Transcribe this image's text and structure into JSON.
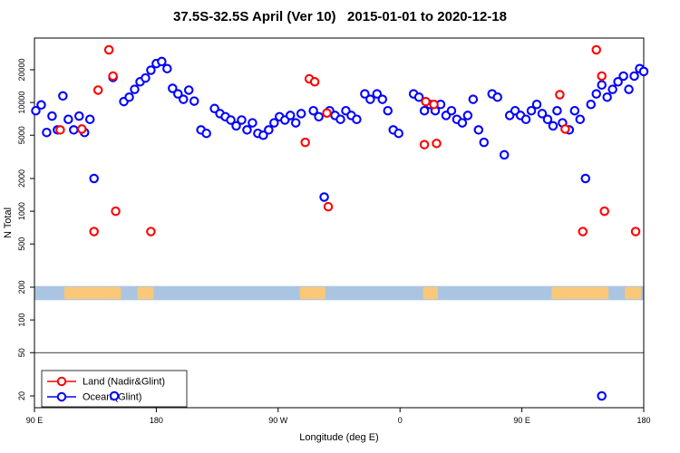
{
  "title": "37.5S-32.5S April (Ver 10)   2015-01-01 to 2020-12-18",
  "chart_data": {
    "type": "scatter",
    "title": "37.5S-32.5S April (Ver 10)   2015-01-01 to 2020-12-18",
    "xlabel": "Longitude (deg E)",
    "ylabel": "N Total",
    "x_axis": {
      "min": 90,
      "max": 540,
      "ticks": [
        {
          "v": 90,
          "label": "90 E"
        },
        {
          "v": 180,
          "label": "180"
        },
        {
          "v": 270,
          "label": "90 W"
        },
        {
          "v": 360,
          "label": "0"
        },
        {
          "v": 450,
          "label": "90 E"
        },
        {
          "v": 540,
          "label": "180"
        }
      ]
    },
    "y_axis": {
      "scale": "log",
      "min": 18,
      "max": 32000,
      "ticks": [
        20,
        50,
        100,
        200,
        500,
        1000,
        2000,
        5000,
        10000,
        20000
      ]
    },
    "gridline_y": 50,
    "map_strip": {
      "n_low": 152,
      "n_high": 205,
      "ocean_color": "#aac5e2",
      "land_color": "#f9c879",
      "land_patches": [
        [
          112,
          154
        ],
        [
          166,
          178
        ],
        [
          286,
          305
        ],
        [
          377,
          388
        ],
        [
          472,
          514
        ],
        [
          526,
          538
        ]
      ]
    },
    "legend": {
      "position": "bottom-left"
    },
    "series": [
      {
        "name": "Land (Nadir&Glint)",
        "color": "#ff0000",
        "points": [
          [
            109,
            5600
          ],
          [
            125,
            5700
          ],
          [
            134,
            650
          ],
          [
            137,
            13000
          ],
          [
            145,
            30500
          ],
          [
            148,
            17500
          ],
          [
            150,
            1000
          ],
          [
            176,
            650
          ],
          [
            290,
            4300
          ],
          [
            293,
            16500
          ],
          [
            297,
            15500
          ],
          [
            306,
            8000
          ],
          [
            307,
            1100
          ],
          [
            378,
            4100
          ],
          [
            379,
            10200
          ],
          [
            385,
            9600
          ],
          [
            387,
            4200
          ],
          [
            478,
            11800
          ],
          [
            482,
            5700
          ],
          [
            495,
            650
          ],
          [
            505,
            30500
          ],
          [
            509,
            17500
          ],
          [
            511,
            1000
          ],
          [
            534,
            650
          ]
        ]
      },
      {
        "name": "Ocean (Glint)",
        "color": "#0000ff",
        "points": [
          [
            91,
            8400
          ],
          [
            95,
            9500
          ],
          [
            99,
            5300
          ],
          [
            103,
            7500
          ],
          [
            107,
            5600
          ],
          [
            111,
            11500
          ],
          [
            115,
            7000
          ],
          [
            119,
            5600
          ],
          [
            123,
            7500
          ],
          [
            127,
            5300
          ],
          [
            131,
            7000
          ],
          [
            134,
            2000
          ],
          [
            148,
            17000
          ],
          [
            149,
            20
          ],
          [
            156,
            10200
          ],
          [
            160,
            11200
          ],
          [
            164,
            13200
          ],
          [
            168,
            15500
          ],
          [
            172,
            16800
          ],
          [
            176,
            19800
          ],
          [
            180,
            22800
          ],
          [
            184,
            23800
          ],
          [
            188,
            20500
          ],
          [
            192,
            13500
          ],
          [
            196,
            12000
          ],
          [
            200,
            10700
          ],
          [
            204,
            13000
          ],
          [
            208,
            10300
          ],
          [
            213,
            5600
          ],
          [
            217,
            5200
          ],
          [
            223,
            8800
          ],
          [
            227,
            7900
          ],
          [
            231,
            7400
          ],
          [
            235,
            6900
          ],
          [
            239,
            6100
          ],
          [
            243,
            6900
          ],
          [
            247,
            5600
          ],
          [
            251,
            6500
          ],
          [
            255,
            5200
          ],
          [
            259,
            5000
          ],
          [
            263,
            5600
          ],
          [
            267,
            6500
          ],
          [
            271,
            7400
          ],
          [
            275,
            6900
          ],
          [
            279,
            7600
          ],
          [
            283,
            6500
          ],
          [
            287,
            7900
          ],
          [
            296,
            8400
          ],
          [
            300,
            7400
          ],
          [
            304,
            1350
          ],
          [
            308,
            8400
          ],
          [
            312,
            7600
          ],
          [
            316,
            7000
          ],
          [
            320,
            8400
          ],
          [
            324,
            7600
          ],
          [
            328,
            7000
          ],
          [
            334,
            12000
          ],
          [
            338,
            10700
          ],
          [
            343,
            12000
          ],
          [
            347,
            10700
          ],
          [
            351,
            8400
          ],
          [
            355,
            5600
          ],
          [
            359,
            5200
          ],
          [
            370,
            12000
          ],
          [
            374,
            11200
          ],
          [
            378,
            8400
          ],
          [
            382,
            9600
          ],
          [
            386,
            8400
          ],
          [
            390,
            9600
          ],
          [
            394,
            7600
          ],
          [
            398,
            8400
          ],
          [
            402,
            7000
          ],
          [
            406,
            6500
          ],
          [
            410,
            7600
          ],
          [
            414,
            10700
          ],
          [
            418,
            5600
          ],
          [
            422,
            4300
          ],
          [
            428,
            12000
          ],
          [
            432,
            11200
          ],
          [
            437,
            3300
          ],
          [
            441,
            7600
          ],
          [
            445,
            8400
          ],
          [
            449,
            7600
          ],
          [
            453,
            7000
          ],
          [
            457,
            8400
          ],
          [
            461,
            9600
          ],
          [
            465,
            7900
          ],
          [
            469,
            7000
          ],
          [
            473,
            6100
          ],
          [
            476,
            8400
          ],
          [
            480,
            6500
          ],
          [
            485,
            5600
          ],
          [
            489,
            8400
          ],
          [
            493,
            7000
          ],
          [
            497,
            2000
          ],
          [
            501,
            9600
          ],
          [
            505,
            12000
          ],
          [
            509,
            20
          ],
          [
            509,
            14500
          ],
          [
            513,
            11200
          ],
          [
            517,
            13200
          ],
          [
            521,
            15500
          ],
          [
            525,
            17500
          ],
          [
            529,
            13200
          ],
          [
            533,
            17500
          ],
          [
            537,
            20500
          ],
          [
            540,
            19300
          ]
        ]
      }
    ]
  }
}
